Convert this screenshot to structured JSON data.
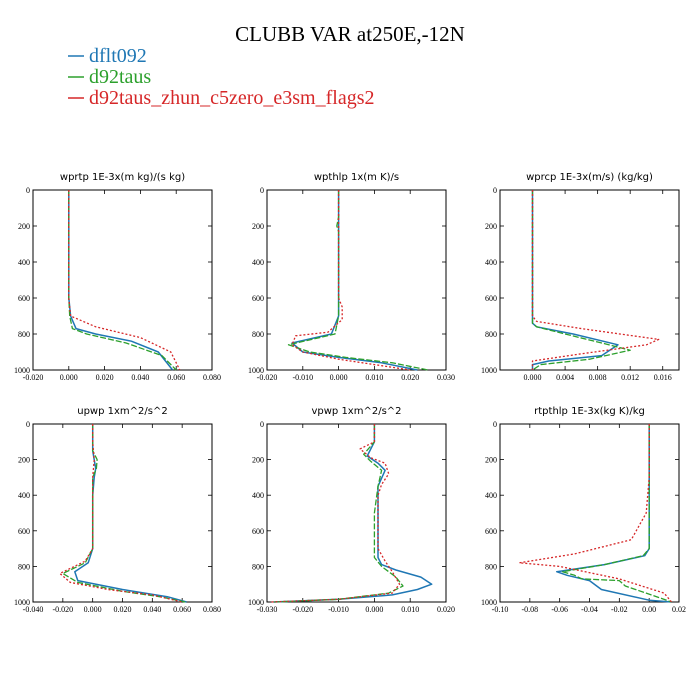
{
  "chart_data": {
    "type": "line",
    "title": "CLUBB VAR at250E,-12N",
    "legend": {
      "placement": "top-left",
      "entries": [
        {
          "name": "dflt092",
          "color": "#1f77b4"
        },
        {
          "name": "d92taus",
          "color": "#2ca02c"
        },
        {
          "name": "d92taus_zhun_c5zero_e3sm_flags2",
          "color": "#d62728"
        }
      ]
    },
    "yaxis": {
      "range": [
        0,
        1000
      ],
      "inverted": true,
      "ticks": [
        0,
        200,
        400,
        600,
        800,
        1000
      ],
      "tick_labels": [
        "0",
        "200",
        "400",
        "600",
        "800",
        "1000"
      ]
    },
    "panels": [
      {
        "title": "wprtp  1E-3x(m kg)/(s kg)",
        "xlim": [
          -0.02,
          0.08
        ],
        "xticks": [
          -0.02,
          0,
          0.02,
          0.04,
          0.06,
          0.08
        ],
        "xtick_labels": [
          "-0.020",
          "0.000",
          "0.020",
          "0.040",
          "0.060",
          "0.080"
        ],
        "series": [
          {
            "name": "dflt092",
            "x": [
              0,
              0,
              0,
              0,
              0.001,
              0.004,
              0.015,
              0.035,
              0.05,
              0.058
            ],
            "y": [
              0,
              200,
              400,
              600,
              700,
              770,
              800,
              840,
              900,
              1000
            ]
          },
          {
            "name": "d92taus",
            "x": [
              0,
              0,
              0,
              0,
              0.0005,
              0.002,
              0.01,
              0.032,
              0.052,
              0.06
            ],
            "y": [
              0,
              200,
              400,
              600,
              700,
              770,
              800,
              850,
              920,
              1000
            ]
          },
          {
            "name": "d92taus_zhun_c5zero_e3sm_flags2",
            "x": [
              0,
              0,
              0,
              0,
              0.001,
              0.015,
              0.04,
              0.057,
              0.062
            ],
            "y": [
              0,
              200,
              400,
              600,
              700,
              760,
              820,
              900,
              1000
            ]
          }
        ]
      },
      {
        "title": "wpthlp  1x(m K)/s",
        "xlim": [
          -0.02,
          0.03
        ],
        "xticks": [
          -0.02,
          -0.01,
          0,
          0.01,
          0.02,
          0.03
        ],
        "xtick_labels": [
          "-0.020",
          "-0.010",
          "0.000",
          "0.010",
          "0.020",
          "0.030"
        ],
        "series": [
          {
            "name": "dflt092",
            "x": [
              0,
              0,
              0,
              0,
              0,
              -0.002,
              -0.013,
              -0.01,
              0,
              0.012,
              0.022
            ],
            "y": [
              0,
              150,
              200,
              600,
              700,
              800,
              850,
              900,
              930,
              960,
              1000
            ]
          },
          {
            "name": "d92taus",
            "x": [
              0,
              0,
              -0.0005,
              0,
              0,
              -0.001,
              -0.014,
              -0.008,
              0.002,
              0.015,
              0.025
            ],
            "y": [
              0,
              150,
              200,
              230,
              700,
              800,
              860,
              900,
              930,
              960,
              1000
            ]
          },
          {
            "name": "d92taus_zhun_c5zero_e3sm_flags2",
            "x": [
              0,
              0,
              0,
              0,
              0.001,
              0.001,
              -0.003,
              -0.012,
              -0.013,
              -0.01,
              0,
              0.02
            ],
            "y": [
              0,
              200,
              500,
              600,
              650,
              720,
              790,
              810,
              860,
              900,
              940,
              1000
            ]
          }
        ]
      },
      {
        "title": "wprcp  1E-3x(m/s) (kg/kg)",
        "xlim": [
          -0.004,
          0.018
        ],
        "xticks": [
          0,
          0.004,
          0.008,
          0.012,
          0.016
        ],
        "xtick_labels": [
          "0.000",
          "0.004",
          "0.008",
          "0.012",
          "0.016"
        ],
        "series": [
          {
            "name": "dflt092",
            "x": [
              0,
              0,
              0,
              0.0005,
              0.005,
              0.0105,
              0.0085,
              0.002,
              0,
              0
            ],
            "y": [
              0,
              600,
              740,
              760,
              800,
              860,
              920,
              950,
              970,
              1000
            ]
          },
          {
            "name": "d92taus",
            "x": [
              0,
              0,
              0,
              0.0005,
              0.004,
              0.0085,
              0.012,
              0.007,
              0.001,
              0
            ],
            "y": [
              0,
              600,
              740,
              760,
              800,
              850,
              890,
              940,
              970,
              1000
            ]
          },
          {
            "name": "d92taus_zhun_c5zero_e3sm_flags2",
            "x": [
              0,
              0,
              0,
              0.0005,
              0.006,
              0.0155,
              0.014,
              0.006,
              0,
              0
            ],
            "y": [
              0,
              600,
              700,
              730,
              770,
              830,
              860,
              910,
              950,
              1000
            ]
          }
        ]
      },
      {
        "title": "upwp  1xm^2/s^2",
        "xlim": [
          -0.04,
          0.08
        ],
        "xticks": [
          -0.04,
          -0.02,
          0,
          0.02,
          0.04,
          0.06,
          0.08
        ],
        "xtick_labels": [
          "-0.040",
          "-0.020",
          "0.000",
          "0.020",
          "0.040",
          "0.060",
          "0.080"
        ],
        "series": [
          {
            "name": "dflt092",
            "x": [
              0,
              0,
              0.001,
              0.002,
              0.001,
              0,
              0,
              -0.003,
              -0.012,
              -0.01,
              0.02,
              0.05,
              0.063
            ],
            "y": [
              0,
              150,
              200,
              250,
              300,
              400,
              700,
              780,
              830,
              880,
              930,
              970,
              1000
            ]
          },
          {
            "name": "d92taus",
            "x": [
              0,
              0,
              0.003,
              0.0025,
              0,
              0,
              -0.005,
              -0.02,
              -0.01,
              0.02,
              0.045,
              0.062
            ],
            "y": [
              0,
              150,
              200,
              250,
              300,
              700,
              780,
              840,
              890,
              940,
              970,
              1000
            ]
          },
          {
            "name": "d92taus_zhun_c5zero_e3sm_flags2",
            "x": [
              0,
              0,
              0.001,
              0,
              0,
              -0.005,
              -0.022,
              -0.015,
              0.01,
              0.04,
              0.06
            ],
            "y": [
              0,
              100,
              200,
              300,
              700,
              770,
              840,
              890,
              930,
              960,
              1000
            ]
          }
        ]
      },
      {
        "title": "vpwp  1xm^2/s^2",
        "xlim": [
          -0.03,
          0.02
        ],
        "xticks": [
          -0.03,
          -0.02,
          -0.01,
          0,
          0.01,
          0.02
        ],
        "xtick_labels": [
          "-0.030",
          "-0.020",
          "-0.010",
          "0.000",
          "0.010",
          "0.020"
        ],
        "series": [
          {
            "name": "dflt092",
            "x": [
              0,
              0,
              -0.002,
              0.001,
              0.003,
              0.001,
              0.001,
              0.002,
              0.006,
              0.013,
              0.016,
              0.012,
              0.005,
              -0.01,
              -0.028
            ],
            "y": [
              0,
              100,
              180,
              220,
              260,
              350,
              750,
              790,
              820,
              860,
              900,
              930,
              960,
              985,
              1000
            ]
          },
          {
            "name": "d92taus",
            "x": [
              0,
              0,
              -0.003,
              -0.001,
              0.002,
              0.001,
              0,
              0,
              0.002,
              0.006,
              0.008,
              0.004,
              -0.01,
              -0.028
            ],
            "y": [
              0,
              100,
              170,
              210,
              260,
              350,
              500,
              750,
              800,
              860,
              910,
              950,
              985,
              1000
            ]
          },
          {
            "name": "d92taus_zhun_c5zero_e3sm_flags2",
            "x": [
              0,
              0,
              -0.004,
              -0.001,
              0.003,
              0.004,
              0.002,
              0.001,
              0.001,
              0.003,
              0.005,
              0.007,
              0.005,
              -0.01,
              -0.029
            ],
            "y": [
              0,
              100,
              140,
              190,
              220,
              280,
              340,
              400,
              700,
              770,
              830,
              900,
              950,
              985,
              1000
            ]
          }
        ]
      },
      {
        "title": "rtpthlp  1E-3x(kg K)/kg",
        "xlim": [
          -0.1,
          0.02
        ],
        "xticks": [
          -0.1,
          -0.08,
          -0.06,
          -0.04,
          -0.02,
          0,
          0.02
        ],
        "xtick_labels": [
          "-0.10",
          "-0.08",
          "-0.06",
          "-0.04",
          "-0.02",
          "0.00",
          "0.02"
        ],
        "series": [
          {
            "name": "dflt092",
            "x": [
              0,
              0,
              0,
              -0.003,
              -0.03,
              -0.062,
              -0.055,
              -0.04,
              -0.032,
              0,
              0.015
            ],
            "y": [
              0,
              400,
              700,
              740,
              790,
              830,
              850,
              880,
              930,
              990,
              1000
            ]
          },
          {
            "name": "d92taus",
            "x": [
              0,
              0,
              0,
              -0.004,
              -0.03,
              -0.058,
              -0.05,
              -0.045,
              -0.02,
              -0.016,
              0.005,
              0.015
            ],
            "y": [
              0,
              400,
              700,
              740,
              790,
              830,
              850,
              870,
              880,
              910,
              970,
              1000
            ]
          },
          {
            "name": "d92taus_zhun_c5zero_e3sm_flags2",
            "x": [
              0,
              0,
              -0.002,
              -0.012,
              -0.05,
              -0.087,
              -0.06,
              -0.02,
              0.01,
              0.015
            ],
            "y": [
              0,
              300,
              500,
              650,
              730,
              780,
              800,
              870,
              950,
              1000
            ]
          }
        ]
      }
    ]
  }
}
